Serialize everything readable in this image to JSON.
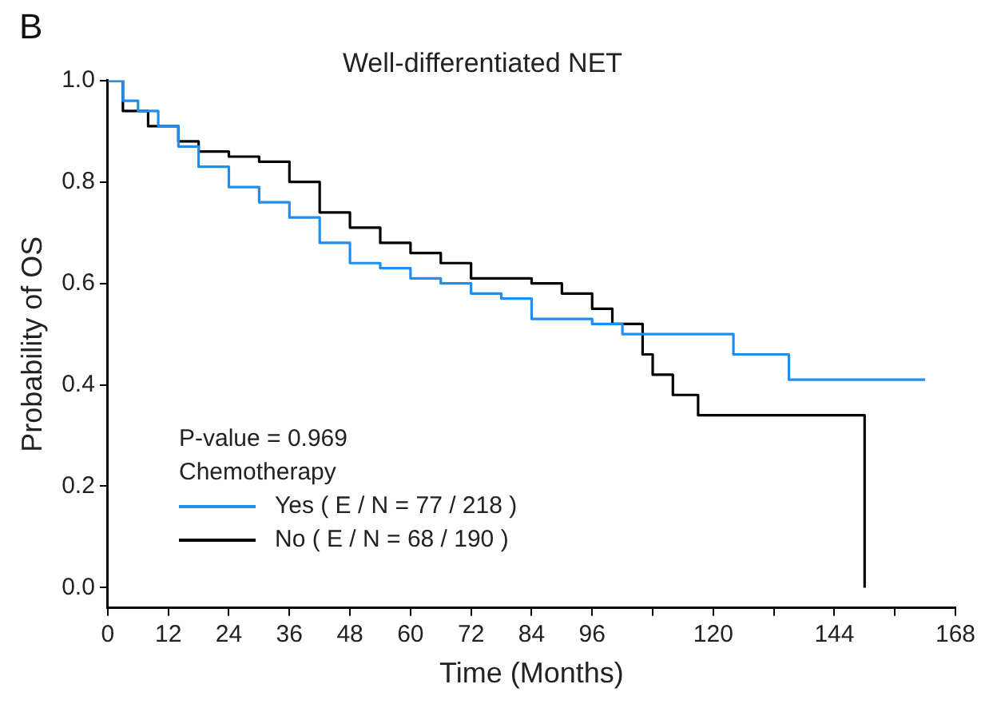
{
  "chart_data": {
    "type": "step",
    "title": "Well-differentiated NET",
    "xlabel": "Time (Months)",
    "ylabel": "Probability of OS",
    "annotations": [
      "B",
      "P-value = 0.969",
      "Chemotherapy"
    ],
    "legend": "bottom left",
    "grid": false,
    "marker": "none",
    "line_style": "solid",
    "xlim": [
      0,
      168
    ],
    "xticks": [
      0,
      12,
      24,
      36,
      48,
      60,
      72,
      84,
      96,
      {
        "value": 108,
        "label": null
      },
      120,
      {
        "value": 132,
        "label": null
      },
      144,
      {
        "value": 156,
        "label": null
      },
      168
    ],
    "ylim": [
      -0.04,
      1.0
    ],
    "yticks": [
      {
        "value": 0,
        "label": "0.0"
      },
      0.2,
      0.4,
      0.6,
      0.8,
      {
        "value": 1,
        "label": "1.0"
      }
    ],
    "series": [
      {
        "name": "Yes  ( E / N = 77 / 218 )",
        "color": "#1f8ef1",
        "x": [
          0,
          3,
          6,
          10,
          14,
          18,
          24,
          30,
          36,
          42,
          48,
          54,
          60,
          66,
          72,
          78,
          84,
          90,
          96,
          100,
          102,
          124,
          135,
          162
        ],
        "values": [
          1.0,
          0.96,
          0.94,
          0.91,
          0.87,
          0.83,
          0.79,
          0.76,
          0.73,
          0.68,
          0.64,
          0.63,
          0.61,
          0.6,
          0.58,
          0.57,
          0.53,
          0.53,
          0.52,
          0.52,
          0.5,
          0.46,
          0.41,
          0.41
        ]
      },
      {
        "name": "No  ( E / N = 68 / 190 )",
        "color": "#000000",
        "x": [
          0,
          3,
          8,
          14,
          18,
          24,
          30,
          36,
          42,
          48,
          54,
          60,
          66,
          72,
          84,
          90,
          96,
          100,
          106,
          108,
          112,
          117,
          150,
          150
        ],
        "values": [
          1.0,
          0.94,
          0.91,
          0.88,
          0.86,
          0.85,
          0.84,
          0.8,
          0.74,
          0.71,
          0.68,
          0.66,
          0.64,
          0.61,
          0.6,
          0.58,
          0.55,
          0.52,
          0.46,
          0.42,
          0.38,
          0.34,
          0.34,
          0
        ]
      }
    ]
  }
}
